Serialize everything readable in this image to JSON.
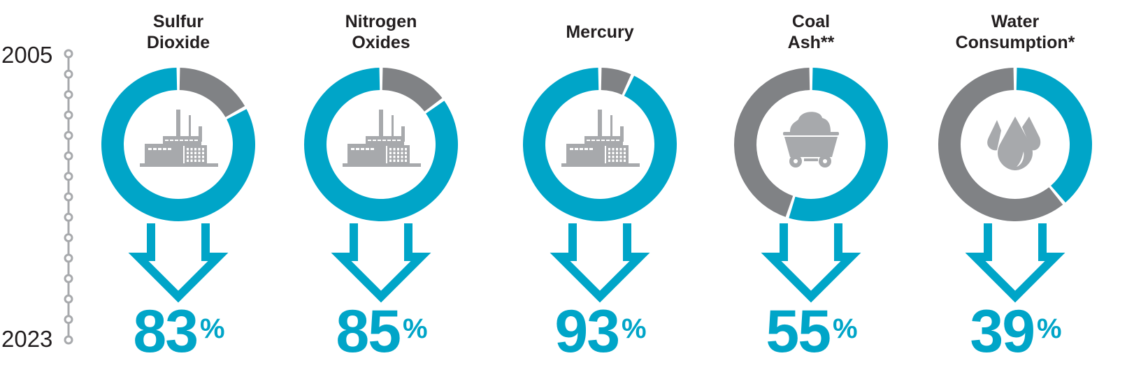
{
  "timeline": {
    "start": "2005",
    "end": "2023"
  },
  "colors": {
    "reduction": "#00a5c8",
    "remaining": "#808285",
    "icon": "#a7a9ac"
  },
  "chart_data": {
    "type": "pie",
    "variant": "donut",
    "categories": [
      "Sulfur Dioxide",
      "Nitrogen Oxides",
      "Mercury",
      "Coal Ash**",
      "Water Consumption*"
    ],
    "series": [
      {
        "values": [
          83,
          85,
          93,
          55,
          39
        ]
      }
    ],
    "items": [
      {
        "title_lines": [
          "Sulfur",
          "Dioxide"
        ],
        "value": 83,
        "value_label": "83",
        "icon": "factory-icon",
        "reduction_first": false
      },
      {
        "title_lines": [
          "Nitrogen",
          "Oxides"
        ],
        "value": 85,
        "value_label": "85",
        "icon": "factory-icon",
        "reduction_first": false
      },
      {
        "title_lines": [
          "Mercury"
        ],
        "value": 93,
        "value_label": "93",
        "icon": "factory-icon",
        "reduction_first": false
      },
      {
        "title_lines": [
          "Coal",
          "Ash**"
        ],
        "value": 55,
        "value_label": "55",
        "icon": "coal-cart-icon",
        "reduction_first": true
      },
      {
        "title_lines": [
          "Water",
          "Consumption*"
        ],
        "value": 39,
        "value_label": "39",
        "icon": "water-drops-icon",
        "reduction_first": true
      }
    ],
    "percent_sign": "%"
  }
}
